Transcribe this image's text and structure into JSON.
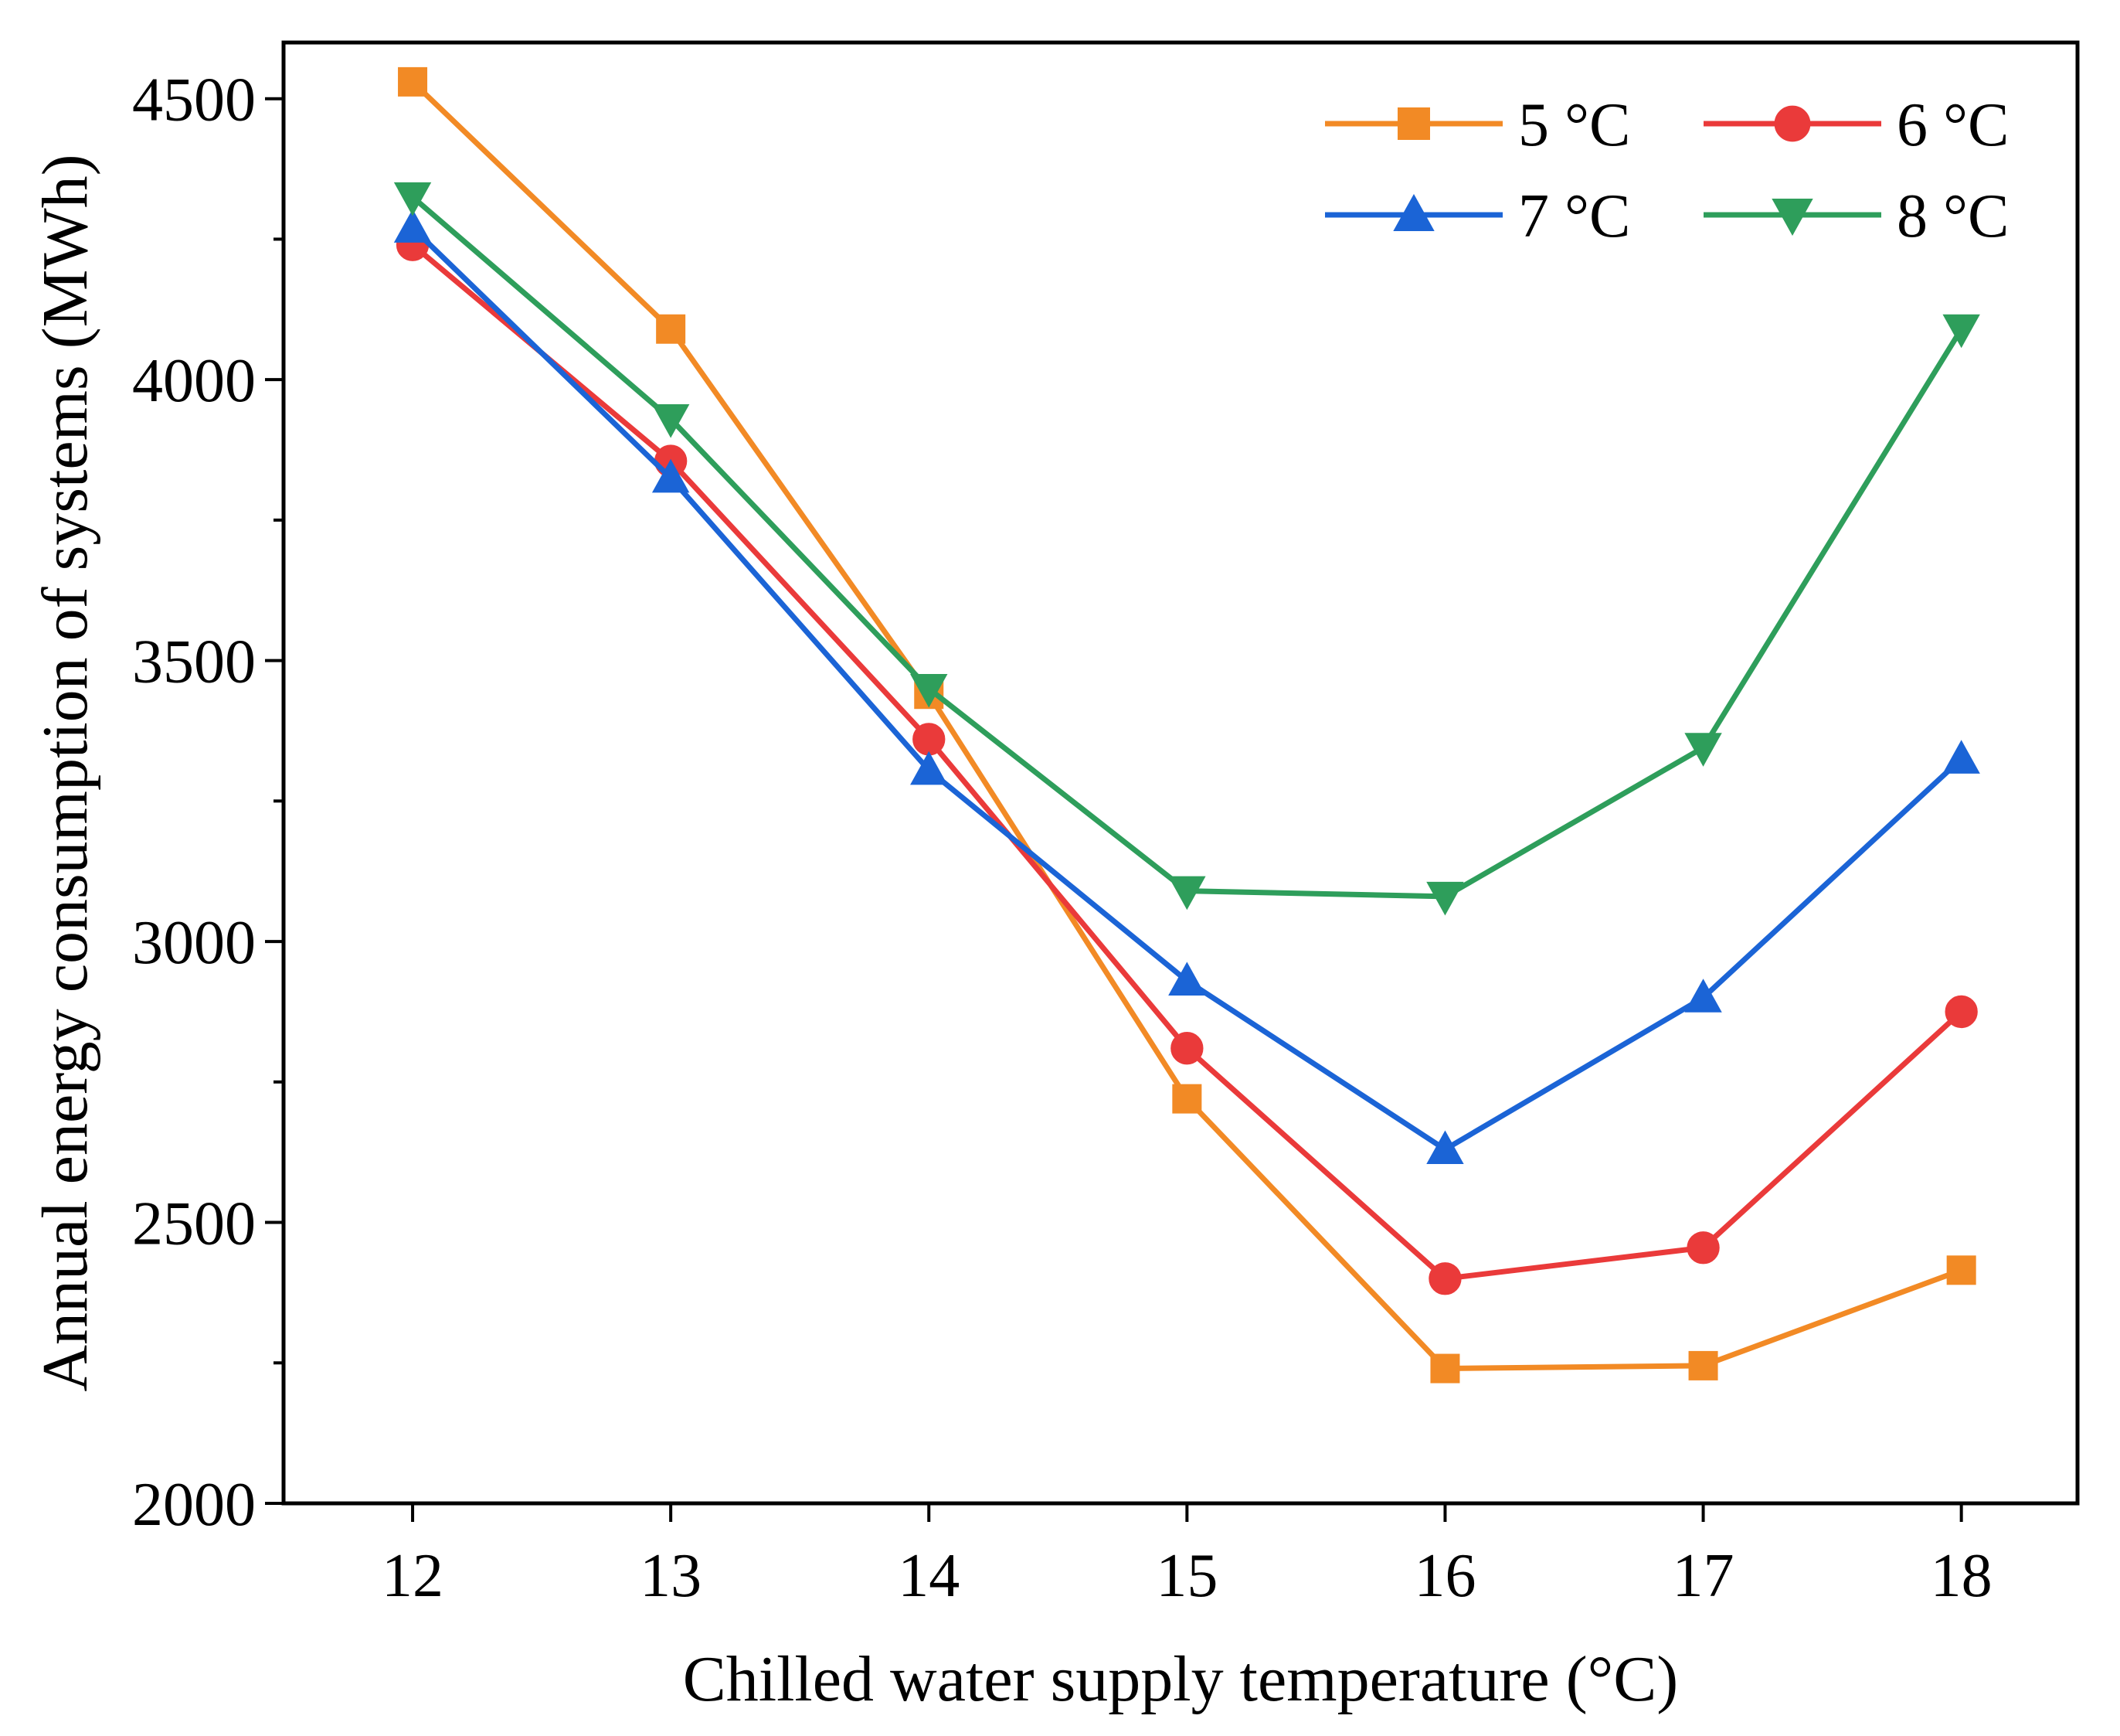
{
  "chart_data": {
    "type": "line",
    "title": "",
    "xlabel": "Chilled water supply temperature (°C)",
    "ylabel": "Annual energy consumption of systems (MWh)",
    "x": [
      12,
      13,
      14,
      15,
      16,
      17,
      18
    ],
    "x_tick_labels": [
      "12",
      "13",
      "14",
      "15",
      "16",
      "17",
      "18"
    ],
    "xlim": [
      11.5,
      18.45
    ],
    "ylim": [
      2000,
      4600
    ],
    "y_ticks": [
      2000,
      2500,
      3000,
      3500,
      4000,
      4500
    ],
    "y_tick_labels": [
      "2000",
      "2500",
      "3000",
      "3500",
      "4000",
      "4500"
    ],
    "y_minor_ticks": [
      2250,
      2750,
      3250,
      3750,
      4250
    ],
    "grid": false,
    "legend_position": "top-right",
    "series": [
      {
        "name": "5 °C",
        "color": "#F28A25",
        "marker": "square",
        "values": [
          4530,
          4090,
          3440,
          2720,
          2240,
          2245,
          2415
        ]
      },
      {
        "name": "6 °C",
        "color": "#EA3A3A",
        "marker": "circle",
        "values": [
          4240,
          3855,
          3360,
          2810,
          2400,
          2455,
          2875
        ]
      },
      {
        "name": "7 °C",
        "color": "#1B64D6",
        "marker": "triangle-up",
        "values": [
          4270,
          3825,
          3305,
          2930,
          2630,
          2900,
          3325
        ]
      },
      {
        "name": "8 °C",
        "color": "#2E9E5B",
        "marker": "triangle-down",
        "values": [
          4325,
          3930,
          3450,
          3090,
          3080,
          3345,
          4090
        ]
      }
    ]
  }
}
